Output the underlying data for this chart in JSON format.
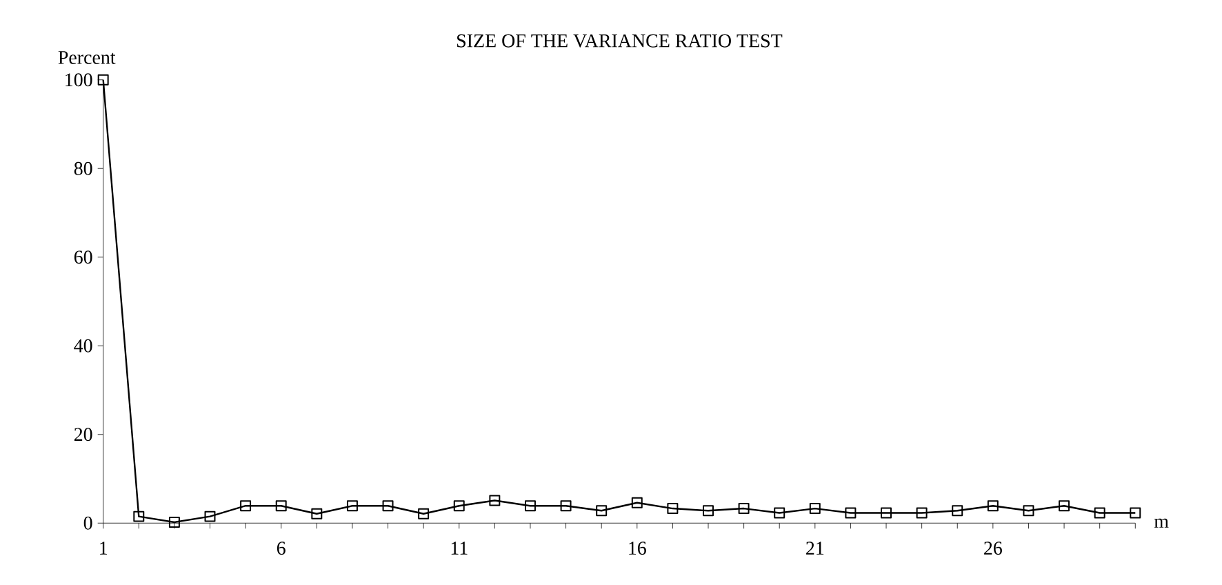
{
  "chart_data": {
    "type": "line",
    "title": "SIZE OF THE VARIANCE RATIO TEST",
    "xlabel": "m",
    "ylabel": "Percent",
    "x": [
      1,
      2,
      3,
      4,
      5,
      6,
      7,
      8,
      9,
      10,
      11,
      12,
      13,
      14,
      15,
      16,
      17,
      18,
      19,
      20,
      21,
      22,
      23,
      24,
      25,
      26,
      27,
      28,
      29,
      30
    ],
    "series": [
      {
        "color": "#000000",
        "values": [
          100,
          1.5,
          0.2,
          1.5,
          3.9,
          3.9,
          2.1,
          3.9,
          3.9,
          2.1,
          3.9,
          5.1,
          3.9,
          3.9,
          2.8,
          4.6,
          3.3,
          2.8,
          3.3,
          2.3,
          3.3,
          2.3,
          2.3,
          2.3,
          2.8,
          3.9,
          2.8,
          3.9,
          2.3,
          2.3
        ]
      }
    ],
    "xlim": [
      1,
      30
    ],
    "xticks": [
      1,
      {
        "value": 2,
        "label": null
      },
      {
        "value": 3,
        "label": null
      },
      {
        "value": 4,
        "label": null
      },
      {
        "value": 5,
        "label": null
      },
      6,
      {
        "value": 7,
        "label": null
      },
      {
        "value": 8,
        "label": null
      },
      {
        "value": 9,
        "label": null
      },
      {
        "value": 10,
        "label": null
      },
      11,
      {
        "value": 12,
        "label": null
      },
      {
        "value": 13,
        "label": null
      },
      {
        "value": 14,
        "label": null
      },
      {
        "value": 15,
        "label": null
      },
      16,
      {
        "value": 17,
        "label": null
      },
      {
        "value": 18,
        "label": null
      },
      {
        "value": 19,
        "label": null
      },
      {
        "value": 20,
        "label": null
      },
      21,
      {
        "value": 22,
        "label": null
      },
      {
        "value": 23,
        "label": null
      },
      {
        "value": 24,
        "label": null
      },
      {
        "value": 25,
        "label": null
      },
      26,
      {
        "value": 27,
        "label": null
      },
      {
        "value": 28,
        "label": null
      },
      {
        "value": 29,
        "label": null
      },
      {
        "value": 30,
        "label": null
      }
    ],
    "ylim": [
      0,
      100
    ],
    "yticks": [
      0,
      20,
      40,
      60,
      80,
      100
    ],
    "marker": "square",
    "line_style": "solid",
    "grid": false
  }
}
